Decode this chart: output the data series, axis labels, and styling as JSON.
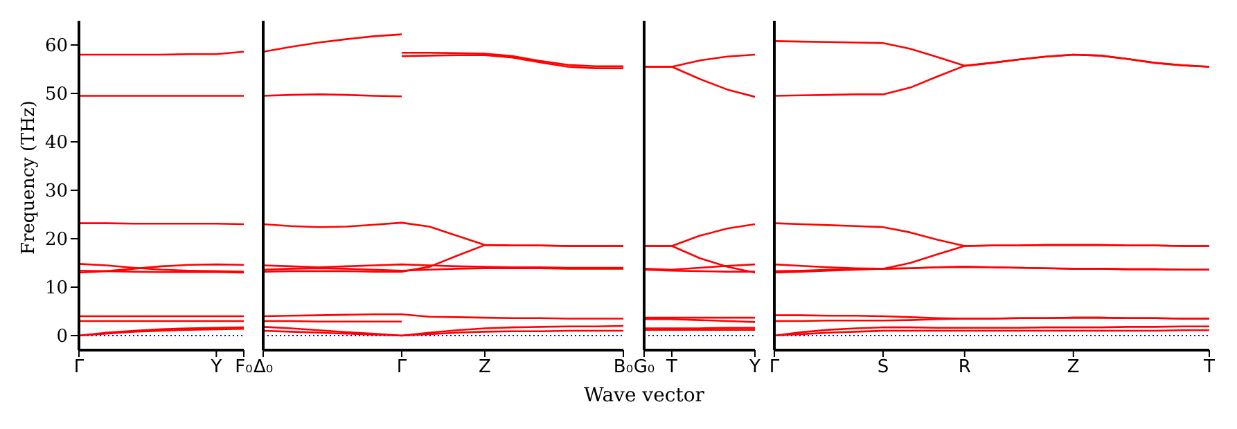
{
  "chart_data": [
    {
      "type": "line",
      "ylabel": "Frequency (THz)",
      "categories": [
        "Γ",
        null,
        null,
        null,
        null,
        "Y",
        "F₀"
      ],
      "ylim": [
        -3,
        65
      ],
      "yticks": [
        0,
        10,
        20,
        30,
        40,
        50,
        60
      ],
      "grid": false,
      "marker": "none",
      "line_style": "solid",
      "ref_lines": [
        {
          "axis": "y",
          "value": 0,
          "color": "#0000ff",
          "line_style": "dotted"
        }
      ],
      "series": [
        {
          "color": "#ff0000",
          "values": [
            58,
            58,
            58,
            58,
            58.1,
            58.1,
            58.6
          ]
        },
        {
          "color": "#ff0000",
          "values": [
            49.5,
            49.5,
            49.5,
            49.5,
            49.5,
            49.5,
            49.5
          ]
        },
        {
          "color": "#ff0000",
          "values": [
            23.2,
            23.2,
            23.1,
            23.1,
            23.1,
            23.1,
            23
          ]
        },
        {
          "color": "#ff0000",
          "values": [
            14.8,
            14.5,
            14,
            13.6,
            13.4,
            13.3,
            13.2
          ]
        },
        {
          "color": "#ff0000",
          "values": [
            13,
            13.3,
            13.8,
            14.3,
            14.6,
            14.7,
            14.6
          ]
        },
        {
          "color": "#ff0000",
          "values": [
            13.4,
            13.3,
            13.2,
            13.1,
            13.1,
            13.1,
            13
          ]
        },
        {
          "color": "#ff0000",
          "values": [
            4,
            4,
            4,
            4,
            4,
            4,
            4
          ]
        },
        {
          "color": "#ff0000",
          "values": [
            3,
            3,
            3,
            3,
            3,
            3,
            3
          ]
        },
        {
          "color": "#ff0000",
          "values": [
            0,
            0.6,
            1,
            1.3,
            1.5,
            1.6,
            1.7
          ]
        },
        {
          "color": "#ff0000",
          "values": [
            0,
            0.4,
            0.8,
            1,
            1.2,
            1.3,
            1.4
          ]
        }
      ]
    },
    {
      "type": "line",
      "xlabel": "Wave vector",
      "tick_labels": "x",
      "categories": [
        "Δ₀",
        null,
        null,
        null,
        null,
        "Γ",
        null,
        null,
        "Z",
        null,
        null,
        null,
        null,
        "B₀"
      ],
      "ylim": [
        -3,
        65
      ],
      "yticks": [
        0,
        10,
        20,
        30,
        40,
        50,
        60
      ],
      "grid": false,
      "marker": "none",
      "line_style": "solid",
      "ref_lines": [
        {
          "axis": "y",
          "value": 0,
          "color": "#0000ff",
          "line_style": "dotted"
        }
      ],
      "series": [
        {
          "color": "#ff0000",
          "values": [
            58.6,
            59.6,
            60.5,
            61.2,
            61.8,
            62.2,
            null,
            null,
            null,
            null,
            null,
            null,
            null,
            null
          ]
        },
        {
          "color": "#ff0000",
          "values": [
            49.5,
            49.7,
            49.8,
            49.7,
            49.5,
            49.4,
            null,
            null,
            null,
            null,
            null,
            null,
            null,
            null
          ]
        },
        {
          "color": "#ff0000",
          "values": [
            null,
            null,
            null,
            null,
            null,
            58.4,
            58.4,
            58.3,
            58.2,
            57.7,
            56.7,
            55.9,
            55.6,
            55.6
          ]
        },
        {
          "color": "#ff0000",
          "values": [
            null,
            null,
            null,
            null,
            null,
            57.7,
            57.8,
            57.9,
            57.9,
            57.4,
            56.4,
            55.5,
            55.2,
            55.2
          ]
        },
        {
          "color": "#ff0000",
          "values": [
            23,
            22.6,
            22.4,
            22.5,
            22.9,
            23.3,
            22.5,
            20.6,
            18.7,
            18.6,
            18.6,
            18.5,
            18.5,
            18.5
          ]
        },
        {
          "color": "#ff0000",
          "values": [
            13.2,
            13.3,
            13.3,
            13.3,
            13.2,
            13.2,
            14.2,
            16.5,
            18.7,
            18.6,
            18.6,
            18.5,
            18.5,
            18.5
          ]
        },
        {
          "color": "#ff0000",
          "values": [
            14.5,
            14.3,
            14.1,
            14.3,
            14.5,
            14.7,
            14.5,
            14.3,
            14.2,
            14.1,
            14.1,
            14,
            14,
            14
          ]
        },
        {
          "color": "#ff0000",
          "values": [
            13.6,
            13.8,
            13.9,
            13.8,
            13.6,
            13.4,
            13.6,
            13.8,
            13.9,
            13.9,
            13.9,
            13.8,
            13.8,
            13.8
          ]
        },
        {
          "color": "#ff0000",
          "values": [
            4,
            4.1,
            4.2,
            4.3,
            4.4,
            4.4,
            3.9,
            3.8,
            3.7,
            3.6,
            3.6,
            3.5,
            3.5,
            3.5
          ]
        },
        {
          "color": "#ff0000",
          "values": [
            3,
            3,
            2.9,
            2.9,
            2.9,
            2.9,
            null,
            null,
            null,
            null,
            null,
            null,
            null,
            null
          ]
        },
        {
          "color": "#ff0000",
          "values": [
            1.8,
            1.5,
            1.1,
            0.7,
            0.4,
            0,
            0.6,
            1.1,
            1.5,
            1.7,
            1.8,
            1.9,
            1.9,
            2
          ]
        },
        {
          "color": "#ff0000",
          "values": [
            1,
            0.8,
            0.6,
            0.4,
            0.2,
            0,
            0.3,
            0.6,
            0.8,
            0.9,
            0.9,
            1,
            1,
            1
          ]
        }
      ]
    },
    {
      "type": "line",
      "tick_labels": "x",
      "categories": [
        "G₀",
        "T",
        null,
        null,
        "Y"
      ],
      "ylim": [
        -3,
        65
      ],
      "yticks": [
        0,
        10,
        20,
        30,
        40,
        50,
        60
      ],
      "grid": false,
      "marker": "none",
      "line_style": "solid",
      "ref_lines": [
        {
          "axis": "y",
          "value": 0,
          "color": "#0000ff",
          "line_style": "dotted"
        }
      ],
      "series": [
        {
          "color": "#ff0000",
          "values": [
            55.5,
            55.5,
            56.8,
            57.6,
            58
          ]
        },
        {
          "color": "#ff0000",
          "values": [
            55.5,
            55.5,
            53,
            50.8,
            49.3
          ]
        },
        {
          "color": "#ff0000",
          "values": [
            18.5,
            18.5,
            20.6,
            22.1,
            23
          ]
        },
        {
          "color": "#ff0000",
          "values": [
            18.5,
            18.5,
            16,
            14.2,
            13
          ]
        },
        {
          "color": "#ff0000",
          "values": [
            13.8,
            13.6,
            14,
            14.4,
            14.7
          ]
        },
        {
          "color": "#ff0000",
          "values": [
            13.6,
            13.4,
            13.3,
            13.2,
            13.2
          ]
        },
        {
          "color": "#ff0000",
          "values": [
            3.7,
            3.7,
            3.7,
            3.7,
            3.7
          ]
        },
        {
          "color": "#ff0000",
          "values": [
            3.4,
            3.4,
            3.2,
            3,
            2.8
          ]
        },
        {
          "color": "#ff0000",
          "values": [
            1.5,
            1.5,
            1.5,
            1.6,
            1.6
          ]
        },
        {
          "color": "#ff0000",
          "values": [
            1.2,
            1.2,
            1.2,
            1.2,
            1.2
          ]
        }
      ]
    },
    {
      "type": "line",
      "tick_labels": "x",
      "categories": [
        "Γ",
        null,
        null,
        null,
        "S",
        null,
        null,
        "R",
        null,
        null,
        null,
        "Z",
        null,
        null,
        null,
        null,
        "T"
      ],
      "ylim": [
        -3,
        65
      ],
      "yticks": [
        0,
        10,
        20,
        30,
        40,
        50,
        60
      ],
      "grid": false,
      "marker": "none",
      "line_style": "solid",
      "ref_lines": [
        {
          "axis": "y",
          "value": 0,
          "color": "#0000ff",
          "line_style": "dotted"
        }
      ],
      "series": [
        {
          "color": "#ff0000",
          "values": [
            60.8,
            60.7,
            60.6,
            60.5,
            60.4,
            59.2,
            57.5,
            55.7,
            56.3,
            57,
            57.6,
            58,
            57.8,
            57.1,
            56.3,
            55.8,
            55.5
          ]
        },
        {
          "color": "#ff0000",
          "values": [
            49.5,
            49.6,
            49.7,
            49.8,
            49.8,
            51.2,
            53.5,
            55.7,
            56.3,
            57,
            57.6,
            58,
            57.8,
            57.1,
            56.3,
            55.8,
            55.5
          ]
        },
        {
          "color": "#ff0000",
          "values": [
            23.2,
            23,
            22.8,
            22.6,
            22.4,
            21.3,
            19.8,
            18.5,
            18.6,
            18.6,
            18.7,
            18.7,
            18.7,
            18.6,
            18.6,
            18.5,
            18.5
          ]
        },
        {
          "color": "#ff0000",
          "values": [
            13,
            13.2,
            13.4,
            13.6,
            13.8,
            15,
            16.8,
            18.5,
            18.6,
            18.6,
            18.7,
            18.7,
            18.7,
            18.6,
            18.6,
            18.5,
            18.5
          ]
        },
        {
          "color": "#ff0000",
          "values": [
            14.7,
            14.4,
            14.1,
            13.9,
            13.8,
            13.9,
            14.1,
            14.2,
            14.1,
            14,
            13.9,
            13.8,
            13.8,
            13.7,
            13.7,
            13.6,
            13.6
          ]
        },
        {
          "color": "#ff0000",
          "values": [
            13.3,
            13.4,
            13.6,
            13.7,
            13.8,
            13.9,
            14.1,
            14.2,
            14.1,
            14,
            13.9,
            13.8,
            13.8,
            13.7,
            13.7,
            13.6,
            13.6
          ]
        },
        {
          "color": "#ff0000",
          "values": [
            4.2,
            4.2,
            4.1,
            4.1,
            4,
            3.8,
            3.6,
            3.5,
            3.5,
            3.6,
            3.6,
            3.7,
            3.7,
            3.6,
            3.6,
            3.5,
            3.5
          ]
        },
        {
          "color": "#ff0000",
          "values": [
            3,
            3,
            3.1,
            3.1,
            3.1,
            3.2,
            3.4,
            3.5,
            3.5,
            3.6,
            3.6,
            3.7,
            3.7,
            3.6,
            3.6,
            3.5,
            3.5
          ]
        },
        {
          "color": "#ff0000",
          "values": [
            0,
            0.7,
            1.2,
            1.5,
            1.7,
            1.7,
            1.6,
            1.6,
            1.6,
            1.6,
            1.7,
            1.7,
            1.7,
            1.8,
            1.8,
            1.9,
            1.9
          ]
        },
        {
          "color": "#ff0000",
          "values": [
            0,
            0.3,
            0.6,
            0.8,
            1,
            1,
            1,
            1,
            1,
            1,
            1,
            1,
            1,
            1,
            1,
            1.1,
            1.1
          ]
        }
      ]
    }
  ]
}
